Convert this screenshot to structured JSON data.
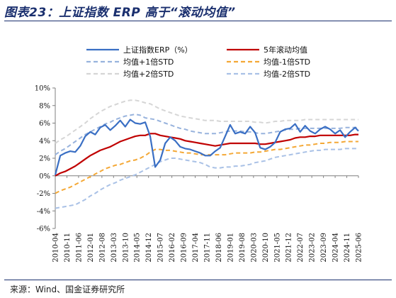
{
  "figure": {
    "title": "图表23：上证指数 ERP 高于“滚动均值”",
    "source": "来源：Wind、国金证券研究所"
  },
  "chart_data": {
    "type": "line",
    "title": "",
    "xlabel": "",
    "ylabel": "",
    "ylim": [
      -6,
      10
    ],
    "yticks": [
      "10%",
      "8%",
      "6%",
      "4%",
      "2%",
      "0%",
      "-2%",
      "-4%",
      "-6%"
    ],
    "xticks": [
      "2010-04",
      "2010-11",
      "2011-06",
      "2012-01",
      "2012-08",
      "2013-03",
      "2013-10",
      "2014-05",
      "2014-12",
      "2015-07",
      "2016-02",
      "2016-09",
      "2017-04",
      "2017-11",
      "2018-06",
      "2019-01",
      "2019-08",
      "2020-03",
      "2020-10",
      "2021-05",
      "2021-12",
      "2022-07",
      "2023-02",
      "2023-09",
      "2024-04",
      "2024-11",
      "2025-06"
    ],
    "grid": false,
    "legend_position": "top",
    "x": [
      "2010-04",
      "2010-07",
      "2010-10",
      "2011-01",
      "2011-04",
      "2011-07",
      "2011-10",
      "2012-01",
      "2012-04",
      "2012-07",
      "2012-10",
      "2013-01",
      "2013-04",
      "2013-07",
      "2013-10",
      "2014-01",
      "2014-04",
      "2014-07",
      "2014-10",
      "2015-01",
      "2015-04",
      "2015-07",
      "2015-10",
      "2016-01",
      "2016-04",
      "2016-07",
      "2016-10",
      "2017-01",
      "2017-04",
      "2017-07",
      "2017-10",
      "2018-01",
      "2018-04",
      "2018-07",
      "2018-10",
      "2019-01",
      "2019-04",
      "2019-07",
      "2019-10",
      "2020-01",
      "2020-04",
      "2020-07",
      "2020-10",
      "2021-01",
      "2021-04",
      "2021-07",
      "2021-10",
      "2022-01",
      "2022-04",
      "2022-07",
      "2022-10",
      "2023-01",
      "2023-04",
      "2023-07",
      "2023-10",
      "2024-01",
      "2024-04",
      "2024-07",
      "2024-10",
      "2025-01",
      "2025-04",
      "2025-06"
    ],
    "series": [
      {
        "name": "上证指数ERP（%）",
        "color": "#3a6fc4",
        "style": "solid",
        "values": [
          0.1,
          2.3,
          2.6,
          2.8,
          2.7,
          3.4,
          4.5,
          5.0,
          4.7,
          5.5,
          5.8,
          5.2,
          5.7,
          6.3,
          5.6,
          6.4,
          6.0,
          5.9,
          6.1,
          4.5,
          1.0,
          1.8,
          3.7,
          4.4,
          4.0,
          3.3,
          3.1,
          3.0,
          2.8,
          2.6,
          2.3,
          2.3,
          2.8,
          3.2,
          4.5,
          5.8,
          4.8,
          5.0,
          4.8,
          5.6,
          4.9,
          3.2,
          3.0,
          3.3,
          3.8,
          5.0,
          5.3,
          5.4,
          5.9,
          5.0,
          5.7,
          5.1,
          4.8,
          5.3,
          5.6,
          5.3,
          4.8,
          5.2,
          4.4,
          5.0,
          5.5,
          5.1
        ]
      },
      {
        "name": "5年滚动均值",
        "color": "#c00000",
        "style": "solid",
        "values": [
          0.0,
          0.3,
          0.5,
          0.8,
          1.1,
          1.5,
          1.9,
          2.3,
          2.6,
          2.9,
          3.1,
          3.3,
          3.6,
          3.9,
          4.1,
          4.3,
          4.5,
          4.6,
          4.6,
          4.8,
          4.8,
          4.6,
          4.5,
          4.4,
          4.3,
          4.2,
          4.0,
          3.9,
          3.8,
          3.7,
          3.6,
          3.5,
          3.4,
          3.5,
          3.6,
          3.7,
          3.7,
          3.7,
          3.7,
          3.7,
          3.7,
          3.6,
          3.6,
          3.7,
          3.8,
          3.9,
          4.0,
          4.1,
          4.3,
          4.4,
          4.4,
          4.5,
          4.5,
          4.6,
          4.6,
          4.6,
          4.6,
          4.6,
          4.6,
          4.6,
          4.7,
          4.7
        ]
      },
      {
        "name": "均值+1倍STD",
        "color": "#98b3dd",
        "style": "dashed",
        "values": [
          2.4,
          2.8,
          3.1,
          3.5,
          3.9,
          4.3,
          4.7,
          5.0,
          5.3,
          5.6,
          5.9,
          6.1,
          6.4,
          6.6,
          6.8,
          6.9,
          7.0,
          6.9,
          6.6,
          6.5,
          6.4,
          6.2,
          6.0,
          5.8,
          5.6,
          5.4,
          5.3,
          5.1,
          5.0,
          4.9,
          4.8,
          4.8,
          4.8,
          4.9,
          5.0,
          5.1,
          5.1,
          5.1,
          5.0,
          5.0,
          4.9,
          4.8,
          4.8,
          4.9,
          5.0,
          5.1,
          5.2,
          5.3,
          5.3,
          5.4,
          5.4,
          5.4,
          5.4,
          5.4,
          5.4,
          5.4,
          5.4,
          5.4,
          5.5,
          5.5,
          5.5,
          5.5
        ]
      },
      {
        "name": "均值-1倍STD",
        "color": "#f4a836",
        "style": "dashed",
        "values": [
          -2.0,
          -1.7,
          -1.5,
          -1.3,
          -1.0,
          -0.7,
          -0.4,
          -0.1,
          0.2,
          0.5,
          0.8,
          1.0,
          1.2,
          1.3,
          1.5,
          1.7,
          1.8,
          2.0,
          2.3,
          2.7,
          3.0,
          3.0,
          2.9,
          2.9,
          2.8,
          2.7,
          2.6,
          2.6,
          2.5,
          2.4,
          2.4,
          2.4,
          2.4,
          2.4,
          2.4,
          2.5,
          2.6,
          2.6,
          2.6,
          2.6,
          2.7,
          2.7,
          2.8,
          2.9,
          3.0,
          3.0,
          3.1,
          3.2,
          3.3,
          3.4,
          3.5,
          3.5,
          3.6,
          3.7,
          3.7,
          3.8,
          3.8,
          3.8,
          3.9,
          3.9,
          3.9,
          3.9
        ]
      },
      {
        "name": "均值+2倍STD",
        "color": "#d6d6d6",
        "style": "dashed",
        "values": [
          3.7,
          4.1,
          4.4,
          4.8,
          5.2,
          5.6,
          6.0,
          6.5,
          6.9,
          7.3,
          7.6,
          7.9,
          8.1,
          8.3,
          8.5,
          8.6,
          8.6,
          8.5,
          8.3,
          8.2,
          7.9,
          7.6,
          7.4,
          7.2,
          7.0,
          6.8,
          6.7,
          6.6,
          6.5,
          6.4,
          6.3,
          6.3,
          6.3,
          6.2,
          6.2,
          6.2,
          6.2,
          6.2,
          6.2,
          6.2,
          6.1,
          6.1,
          6.0,
          6.1,
          6.2,
          6.2,
          6.3,
          6.3,
          6.3,
          6.3,
          6.4,
          6.4,
          6.4,
          6.4,
          6.4,
          6.4,
          6.4,
          6.4,
          6.4,
          6.4,
          6.4,
          6.4
        ]
      },
      {
        "name": "均值-2倍STD",
        "color": "#a9c1e6",
        "style": "dashed",
        "values": [
          -3.7,
          -3.6,
          -3.5,
          -3.4,
          -3.3,
          -3.0,
          -2.7,
          -2.3,
          -2.0,
          -1.6,
          -1.3,
          -1.0,
          -0.8,
          -0.5,
          -0.3,
          -0.1,
          0.1,
          0.4,
          0.7,
          1.0,
          1.3,
          1.6,
          1.8,
          2.0,
          2.0,
          1.9,
          1.8,
          1.7,
          1.6,
          1.5,
          1.3,
          1.0,
          0.9,
          0.9,
          1.0,
          1.0,
          1.1,
          1.1,
          1.2,
          1.3,
          1.5,
          1.6,
          1.7,
          1.9,
          2.1,
          2.2,
          2.3,
          2.4,
          2.5,
          2.6,
          2.7,
          2.8,
          2.9,
          2.9,
          3.0,
          3.0,
          3.0,
          3.0,
          3.1,
          3.1,
          3.1,
          3.1
        ]
      }
    ]
  }
}
